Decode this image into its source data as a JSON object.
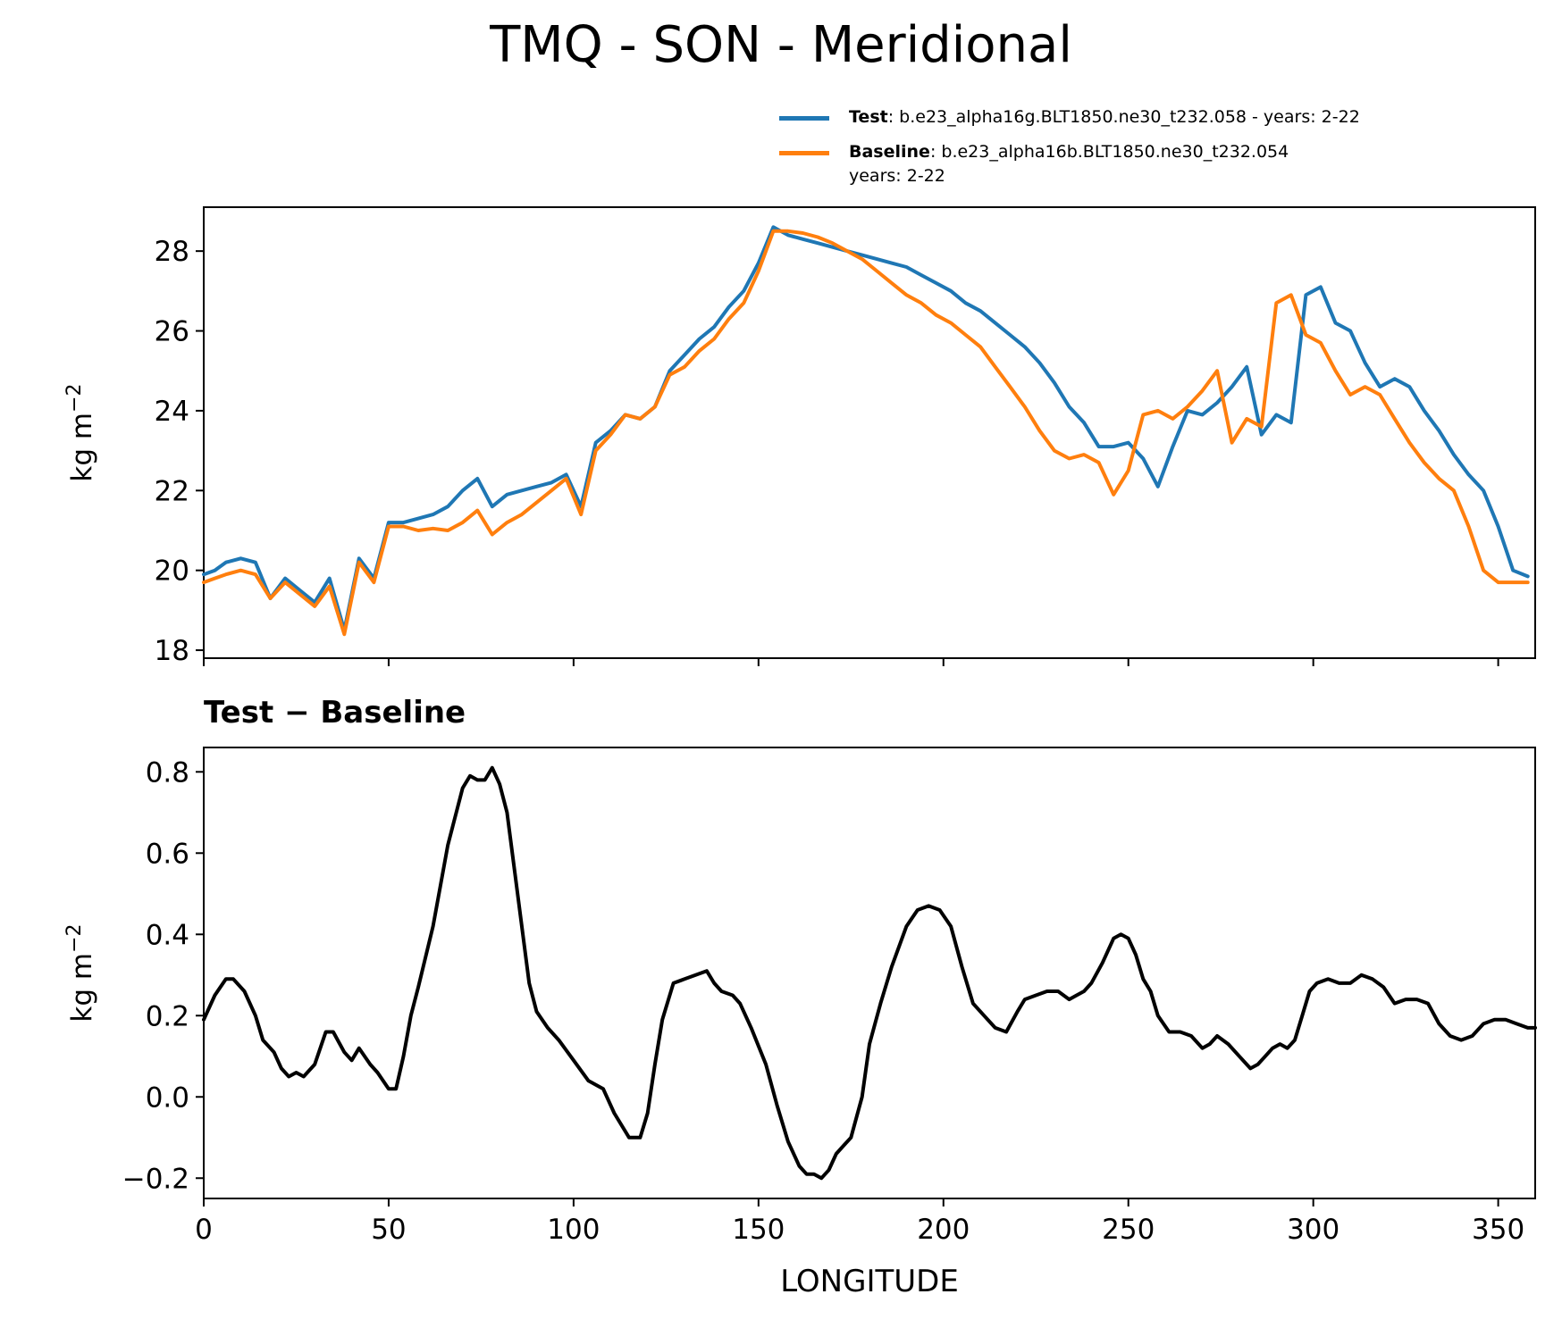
{
  "chart_data": [
    {
      "type": "line",
      "title": "TMQ - SON - Meridional",
      "xlabel": "",
      "ylabel": "kg m",
      "ylabel_exp": "−2",
      "xlim": [
        0,
        360
      ],
      "ylim": [
        17.8,
        29.1
      ],
      "yticks": [
        18,
        20,
        22,
        24,
        26,
        28
      ],
      "ytick_labels": [
        "18",
        "20",
        "22",
        "24",
        "26",
        "28"
      ],
      "xticks": [
        0,
        50,
        100,
        150,
        200,
        250,
        300,
        350
      ],
      "legend": [
        {
          "bold": "Test",
          "text": ": b.e23_alpha16g.BLT1850.ne30_t232.058 - years: 2-22",
          "line2": "",
          "color": "#1f77b4"
        },
        {
          "bold": "Baseline",
          "text": ": b.e23_alpha16b.BLT1850.ne30_t232.054",
          "line2": "years: 2-22",
          "color": "#ff7f0e"
        }
      ],
      "series": [
        {
          "name": "Test",
          "color": "#1f77b4",
          "x": [
            0,
            3,
            6,
            10,
            14,
            18,
            22,
            26,
            30,
            34,
            38,
            42,
            46,
            50,
            54,
            58,
            62,
            66,
            70,
            74,
            78,
            82,
            86,
            90,
            94,
            98,
            102,
            106,
            110,
            114,
            118,
            122,
            126,
            130,
            134,
            138,
            142,
            146,
            150,
            154,
            158,
            162,
            166,
            170,
            174,
            178,
            182,
            186,
            190,
            194,
            198,
            202,
            206,
            210,
            214,
            218,
            222,
            226,
            230,
            234,
            238,
            242,
            246,
            250,
            254,
            258,
            262,
            266,
            270,
            274,
            278,
            282,
            286,
            290,
            294,
            298,
            302,
            306,
            310,
            314,
            318,
            322,
            326,
            330,
            334,
            338,
            342,
            346,
            350,
            354,
            358
          ],
          "values": [
            19.9,
            20.0,
            20.2,
            20.3,
            20.2,
            19.3,
            19.8,
            19.5,
            19.2,
            19.8,
            18.5,
            20.3,
            19.8,
            21.2,
            21.2,
            21.3,
            21.4,
            21.6,
            22.0,
            22.3,
            21.6,
            21.9,
            22.0,
            22.1,
            22.2,
            22.4,
            21.6,
            23.2,
            23.5,
            23.9,
            23.8,
            24.1,
            25.0,
            25.4,
            25.8,
            26.1,
            26.6,
            27.0,
            27.7,
            28.6,
            28.4,
            28.3,
            28.2,
            28.1,
            28.0,
            27.9,
            27.8,
            27.7,
            27.6,
            27.4,
            27.2,
            27.0,
            26.7,
            26.5,
            26.2,
            25.9,
            25.6,
            25.2,
            24.7,
            24.1,
            23.7,
            23.1,
            23.1,
            23.2,
            22.8,
            22.1,
            23.1,
            24.0,
            23.9,
            24.2,
            24.6,
            25.1,
            23.4,
            23.9,
            23.7,
            26.9,
            27.1,
            26.2,
            26.0,
            25.2,
            24.6,
            24.8,
            24.6,
            24.0,
            23.5,
            22.9,
            22.4,
            22.0,
            21.1,
            20.0,
            19.85
          ]
        },
        {
          "name": "Baseline",
          "color": "#ff7f0e",
          "x": [
            0,
            3,
            6,
            10,
            14,
            18,
            22,
            26,
            30,
            34,
            38,
            42,
            46,
            50,
            54,
            58,
            62,
            66,
            70,
            74,
            78,
            82,
            86,
            90,
            94,
            98,
            102,
            106,
            110,
            114,
            118,
            122,
            126,
            130,
            134,
            138,
            142,
            146,
            150,
            154,
            158,
            162,
            166,
            170,
            174,
            178,
            182,
            186,
            190,
            194,
            198,
            202,
            206,
            210,
            214,
            218,
            222,
            226,
            230,
            234,
            238,
            242,
            246,
            250,
            254,
            258,
            262,
            266,
            270,
            274,
            278,
            282,
            286,
            290,
            294,
            298,
            302,
            306,
            310,
            314,
            318,
            322,
            326,
            330,
            334,
            338,
            342,
            346,
            350,
            354,
            358
          ],
          "values": [
            19.7,
            19.8,
            19.9,
            20.0,
            19.9,
            19.3,
            19.7,
            19.4,
            19.1,
            19.6,
            18.4,
            20.2,
            19.7,
            21.1,
            21.1,
            21.0,
            21.05,
            21.0,
            21.2,
            21.5,
            20.9,
            21.2,
            21.4,
            21.7,
            22.0,
            22.3,
            21.4,
            23.0,
            23.4,
            23.9,
            23.8,
            24.1,
            24.9,
            25.1,
            25.5,
            25.8,
            26.3,
            26.7,
            27.5,
            28.5,
            28.5,
            28.45,
            28.35,
            28.2,
            28.0,
            27.8,
            27.5,
            27.2,
            26.9,
            26.7,
            26.4,
            26.2,
            25.9,
            25.6,
            25.1,
            24.6,
            24.1,
            23.5,
            23.0,
            22.8,
            22.9,
            22.7,
            21.9,
            22.5,
            23.9,
            24.0,
            23.8,
            24.1,
            24.5,
            25.0,
            23.2,
            23.8,
            23.6,
            26.7,
            26.9,
            25.9,
            25.7,
            25.0,
            24.4,
            24.6,
            24.4,
            23.8,
            23.2,
            22.7,
            22.3,
            22.0,
            21.1,
            20.0,
            19.7,
            19.7,
            19.7
          ]
        }
      ]
    },
    {
      "type": "line",
      "title": "Test − Baseline",
      "xlabel": "LONGITUDE",
      "ylabel": "kg m",
      "ylabel_exp": "−2",
      "xlim": [
        0,
        360
      ],
      "ylim": [
        -0.25,
        0.86
      ],
      "yticks": [
        -0.2,
        0.0,
        0.2,
        0.4,
        0.6,
        0.8
      ],
      "ytick_labels": [
        "−0.2",
        "0.0",
        "0.2",
        "0.4",
        "0.6",
        "0.8"
      ],
      "xticks": [
        0,
        50,
        100,
        150,
        200,
        250,
        300,
        350
      ],
      "xtick_labels": [
        "0",
        "50",
        "100",
        "150",
        "200",
        "250",
        "300",
        "350"
      ],
      "series": [
        {
          "name": "Test - Baseline",
          "color": "#000000",
          "x": [
            0,
            3,
            6,
            8,
            11,
            14,
            16,
            19,
            21,
            23,
            25,
            27,
            30,
            33,
            35,
            38,
            40,
            42,
            45,
            47,
            50,
            52,
            54,
            56,
            58,
            62,
            66,
            70,
            72,
            74,
            76,
            78,
            80,
            82,
            85,
            88,
            90,
            93,
            96,
            100,
            104,
            108,
            111,
            115,
            118,
            120,
            122,
            124,
            127,
            130,
            133,
            136,
            138,
            140,
            143,
            145,
            148,
            152,
            155,
            158,
            161,
            163,
            165,
            167,
            169,
            171,
            173,
            175,
            178,
            180,
            183,
            186,
            190,
            193,
            196,
            199,
            202,
            205,
            208,
            211,
            214,
            217,
            220,
            222,
            225,
            228,
            231,
            234,
            236,
            238,
            240,
            243,
            246,
            248,
            250,
            252,
            254,
            256,
            258,
            261,
            264,
            267,
            270,
            272,
            274,
            277,
            280,
            283,
            285,
            287,
            289,
            291,
            293,
            295,
            297,
            299,
            301,
            304,
            307,
            310,
            313,
            316,
            319,
            322,
            325,
            328,
            331,
            334,
            337,
            340,
            343,
            346,
            349,
            352,
            355,
            358,
            360
          ],
          "values": [
            0.19,
            0.25,
            0.29,
            0.29,
            0.26,
            0.2,
            0.14,
            0.11,
            0.07,
            0.05,
            0.06,
            0.05,
            0.08,
            0.16,
            0.16,
            0.11,
            0.09,
            0.12,
            0.08,
            0.06,
            0.02,
            0.02,
            0.1,
            0.2,
            0.27,
            0.42,
            0.62,
            0.76,
            0.79,
            0.78,
            0.78,
            0.81,
            0.77,
            0.7,
            0.49,
            0.28,
            0.21,
            0.17,
            0.14,
            0.09,
            0.04,
            0.02,
            -0.04,
            -0.1,
            -0.1,
            -0.04,
            0.08,
            0.19,
            0.28,
            0.29,
            0.3,
            0.31,
            0.28,
            0.26,
            0.25,
            0.23,
            0.17,
            0.08,
            -0.02,
            -0.11,
            -0.17,
            -0.19,
            -0.19,
            -0.2,
            -0.18,
            -0.14,
            -0.12,
            -0.1,
            0.0,
            0.13,
            0.23,
            0.32,
            0.42,
            0.46,
            0.47,
            0.46,
            0.42,
            0.32,
            0.23,
            0.2,
            0.17,
            0.16,
            0.21,
            0.24,
            0.25,
            0.26,
            0.26,
            0.24,
            0.25,
            0.26,
            0.28,
            0.33,
            0.39,
            0.4,
            0.39,
            0.35,
            0.29,
            0.26,
            0.2,
            0.16,
            0.16,
            0.15,
            0.12,
            0.13,
            0.15,
            0.13,
            0.1,
            0.07,
            0.08,
            0.1,
            0.12,
            0.13,
            0.12,
            0.14,
            0.2,
            0.26,
            0.28,
            0.29,
            0.28,
            0.28,
            0.3,
            0.29,
            0.27,
            0.23,
            0.24,
            0.24,
            0.23,
            0.18,
            0.15,
            0.14,
            0.15,
            0.18,
            0.19,
            0.19,
            0.18,
            0.17,
            0.17
          ]
        }
      ]
    }
  ]
}
